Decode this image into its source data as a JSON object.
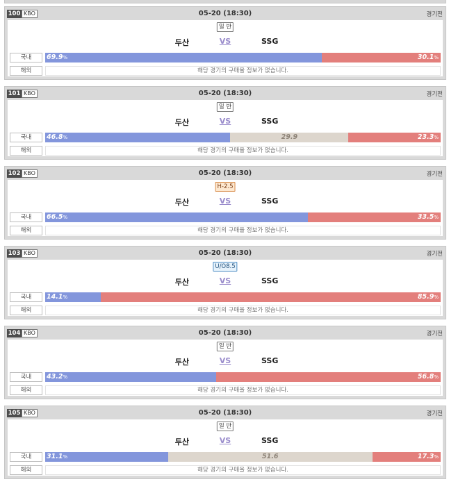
{
  "labels": {
    "domestic": "국내",
    "overseas": "해외",
    "vs": "VS",
    "no_info": "해당 경기의 구매율 정보가 없습니다.",
    "percent": "%"
  },
  "colors": {
    "home_bar": "#8396dc",
    "draw_bar": "#ddd6cd",
    "away_bar": "#e37f7c",
    "handicap_badge": "#fde8d0",
    "overunder_badge": "#e6f2fb"
  },
  "games": [
    {
      "num": "100",
      "league": "KBO",
      "datetime": "05-20 (18:30)",
      "status": "경기전",
      "type": "일 반",
      "type_kind": "normal",
      "home": "두산",
      "away": "SSG",
      "home_pct": "69.9",
      "draw_pct": null,
      "away_pct": "30.1"
    },
    {
      "num": "101",
      "league": "KBO",
      "datetime": "05-20 (18:30)",
      "status": "경기전",
      "type": "일 반",
      "type_kind": "normal",
      "home": "두산",
      "away": "SSG",
      "home_pct": "46.8",
      "draw_pct": "29.9",
      "away_pct": "23.3"
    },
    {
      "num": "102",
      "league": "KBO",
      "datetime": "05-20 (18:30)",
      "status": "경기전",
      "type": "H-2.5",
      "type_kind": "handicap",
      "home": "두산",
      "away": "SSG",
      "home_pct": "66.5",
      "draw_pct": null,
      "away_pct": "33.5"
    },
    {
      "num": "103",
      "league": "KBO",
      "datetime": "05-20 (18:30)",
      "status": "경기전",
      "type": "U/O8.5",
      "type_kind": "overunder",
      "home": "두산",
      "away": "SSG",
      "home_pct": "14.1",
      "draw_pct": null,
      "away_pct": "85.9"
    },
    {
      "num": "104",
      "league": "KBO",
      "datetime": "05-20 (18:30)",
      "status": "경기전",
      "type": "일 반",
      "type_kind": "normal",
      "home": "두산",
      "away": "SSG",
      "home_pct": "43.2",
      "draw_pct": null,
      "away_pct": "56.8"
    },
    {
      "num": "105",
      "league": "KBO",
      "datetime": "05-20 (18:30)",
      "status": "경기전",
      "type": "일 반",
      "type_kind": "normal",
      "home": "두산",
      "away": "SSG",
      "home_pct": "31.1",
      "draw_pct": "51.6",
      "away_pct": "17.3"
    }
  ]
}
